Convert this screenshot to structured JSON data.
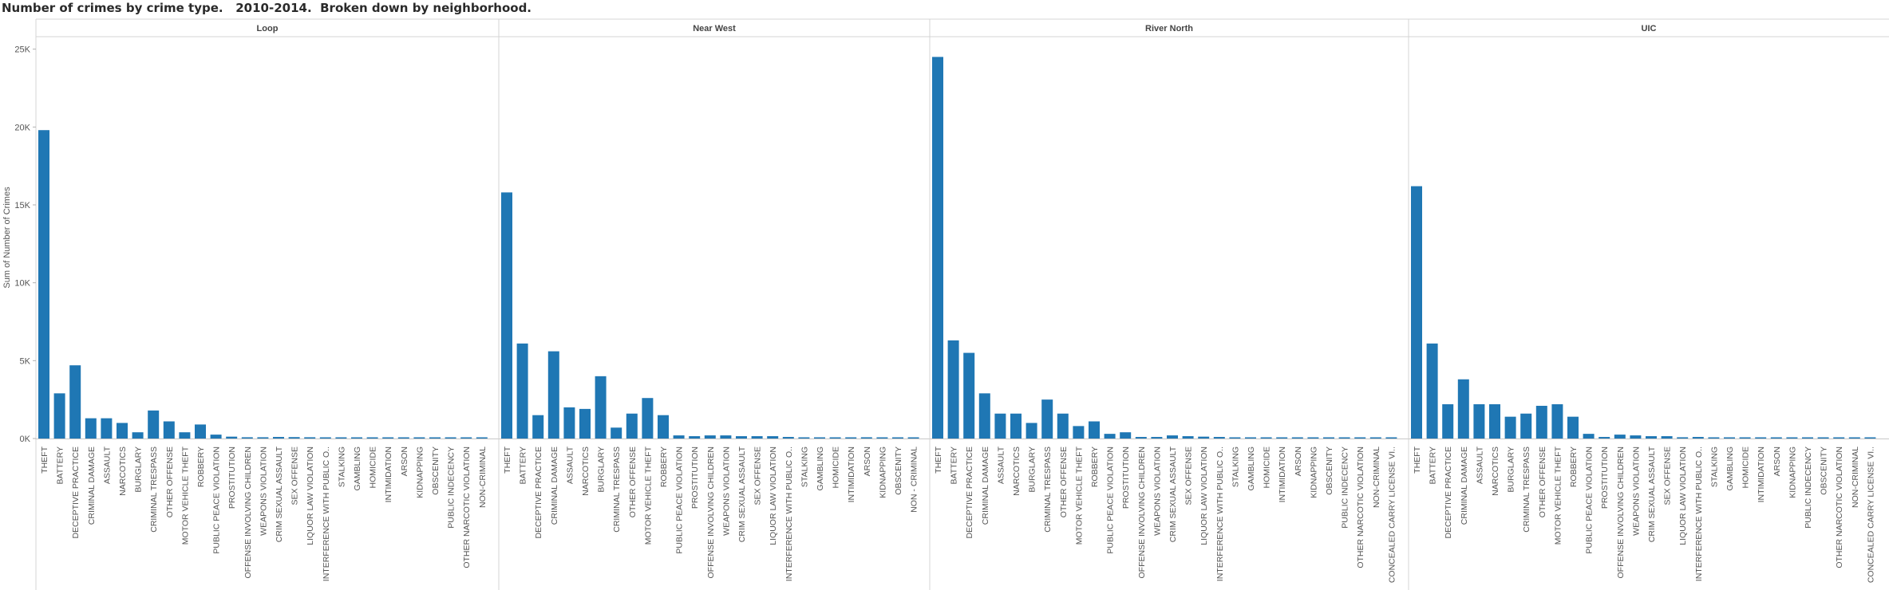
{
  "title": "Number of crimes by crime type.   2010-2014.  Broken down by neighborhood.",
  "colors": {
    "bar": "#1f77b4",
    "grid": "#d4d4d4",
    "text": "#555555",
    "header": "#444444"
  },
  "chart_data": {
    "type": "bar",
    "ylabel": "Sum of Number of Crimes",
    "ylim": [
      0,
      25800
    ],
    "yticks": [
      0,
      5000,
      10000,
      15000,
      20000,
      25000
    ],
    "ytick_labels": [
      "0K",
      "5K",
      "10K",
      "15K",
      "20K",
      "25K"
    ],
    "panels": [
      {
        "name": "Loop",
        "categories": [
          "THEFT",
          "BATTERY",
          "DECEPTIVE PRACTICE",
          "CRIMINAL DAMAGE",
          "ASSAULT",
          "NARCOTICS",
          "BURGLARY",
          "CRIMINAL TRESPASS",
          "OTHER OFFENSE",
          "MOTOR VEHICLE THEFT",
          "ROBBERY",
          "PUBLIC PEACE VIOLATION",
          "PROSTITUTION",
          "OFFENSE INVOLVING CHILDREN",
          "WEAPONS VIOLATION",
          "CRIM SEXUAL ASSAULT",
          "SEX OFFENSE",
          "LIQUOR LAW VIOLATION",
          "INTERFERENCE WITH PUBLIC O..",
          "STALKING",
          "GAMBLING",
          "HOMICIDE",
          "INTIMIDATION",
          "ARSON",
          "KIDNAPPING",
          "OBSCENITY",
          "PUBLIC INDECENCY",
          "OTHER NARCOTIC VIOLATION",
          "NON-CRIMINAL"
        ],
        "values": [
          19800,
          2900,
          4700,
          1300,
          1300,
          1000,
          400,
          1800,
          1100,
          400,
          900,
          250,
          120,
          80,
          80,
          100,
          90,
          80,
          70,
          40,
          20,
          10,
          30,
          10,
          10,
          5,
          5,
          5,
          5
        ]
      },
      {
        "name": "Near West",
        "categories": [
          "THEFT",
          "BATTERY",
          "DECEPTIVE PRACTICE",
          "CRIMINAL DAMAGE",
          "ASSAULT",
          "NARCOTICS",
          "BURGLARY",
          "CRIMINAL TRESPASS",
          "OTHER OFFENSE",
          "MOTOR VEHICLE THEFT",
          "ROBBERY",
          "PUBLIC PEACE VIOLATION",
          "PROSTITUTION",
          "OFFENSE INVOLVING CHILDREN",
          "WEAPONS VIOLATION",
          "CRIM SEXUAL ASSAULT",
          "SEX OFFENSE",
          "LIQUOR LAW VIOLATION",
          "INTERFERENCE WITH PUBLIC O..",
          "STALKING",
          "GAMBLING",
          "HOMICIDE",
          "INTIMIDATION",
          "ARSON",
          "KIDNAPPING",
          "OBSCENITY",
          "NON - CRIMINAL"
        ],
        "values": [
          15800,
          6100,
          1500,
          5600,
          2000,
          1900,
          4000,
          700,
          1600,
          2600,
          1500,
          200,
          150,
          200,
          200,
          150,
          150,
          150,
          100,
          40,
          15,
          10,
          20,
          80,
          15,
          5,
          5
        ]
      },
      {
        "name": "River North",
        "categories": [
          "THEFT",
          "BATTERY",
          "DECEPTIVE PRACTICE",
          "CRIMINAL DAMAGE",
          "ASSAULT",
          "NARCOTICS",
          "BURGLARY",
          "CRIMINAL TRESPASS",
          "OTHER OFFENSE",
          "MOTOR VEHICLE THEFT",
          "ROBBERY",
          "PUBLIC PEACE VIOLATION",
          "PROSTITUTION",
          "OFFENSE INVOLVING CHILDREN",
          "WEAPONS VIOLATION",
          "CRIM SEXUAL ASSAULT",
          "SEX OFFENSE",
          "LIQUOR LAW VIOLATION",
          "INTERFERENCE WITH PUBLIC O..",
          "STALKING",
          "GAMBLING",
          "HOMICIDE",
          "INTIMIDATION",
          "ARSON",
          "KIDNAPPING",
          "OBSCENITY",
          "PUBLIC INDECENCY",
          "OTHER NARCOTIC VIOLATION",
          "NON-CRIMINAL",
          "CONCEALED CARRY LICENSE VI.."
        ],
        "values": [
          24500,
          6300,
          5500,
          2900,
          1600,
          1600,
          1000,
          2500,
          1600,
          800,
          1100,
          300,
          400,
          100,
          100,
          200,
          150,
          120,
          100,
          30,
          50,
          15,
          15,
          10,
          10,
          5,
          5,
          5,
          5,
          5
        ]
      },
      {
        "name": "UIC",
        "categories": [
          "THEFT",
          "BATTERY",
          "DECEPTIVE PRACTICE",
          "CRIMINAL DAMAGE",
          "ASSAULT",
          "NARCOTICS",
          "BURGLARY",
          "CRIMINAL TRESPASS",
          "OTHER OFFENSE",
          "MOTOR VEHICLE THEFT",
          "ROBBERY",
          "PUBLIC PEACE VIOLATION",
          "PROSTITUTION",
          "OFFENSE INVOLVING CHILDREN",
          "WEAPONS VIOLATION",
          "CRIM SEXUAL ASSAULT",
          "SEX OFFENSE",
          "LIQUOR LAW VIOLATION",
          "INTERFERENCE WITH PUBLIC O..",
          "STALKING",
          "GAMBLING",
          "HOMICIDE",
          "INTIMIDATION",
          "ARSON",
          "KIDNAPPING",
          "PUBLIC INDECENCY",
          "OBSCENITY",
          "OTHER NARCOTIC VIOLATION",
          "NON-CRIMINAL",
          "CONCEALED CARRY LICENSE VI.."
        ],
        "values": [
          16200,
          6100,
          2200,
          3800,
          2200,
          2200,
          1400,
          1600,
          2100,
          2200,
          1400,
          300,
          100,
          250,
          200,
          150,
          150,
          80,
          100,
          60,
          60,
          60,
          20,
          15,
          15,
          5,
          5,
          5,
          5,
          5
        ]
      }
    ]
  }
}
